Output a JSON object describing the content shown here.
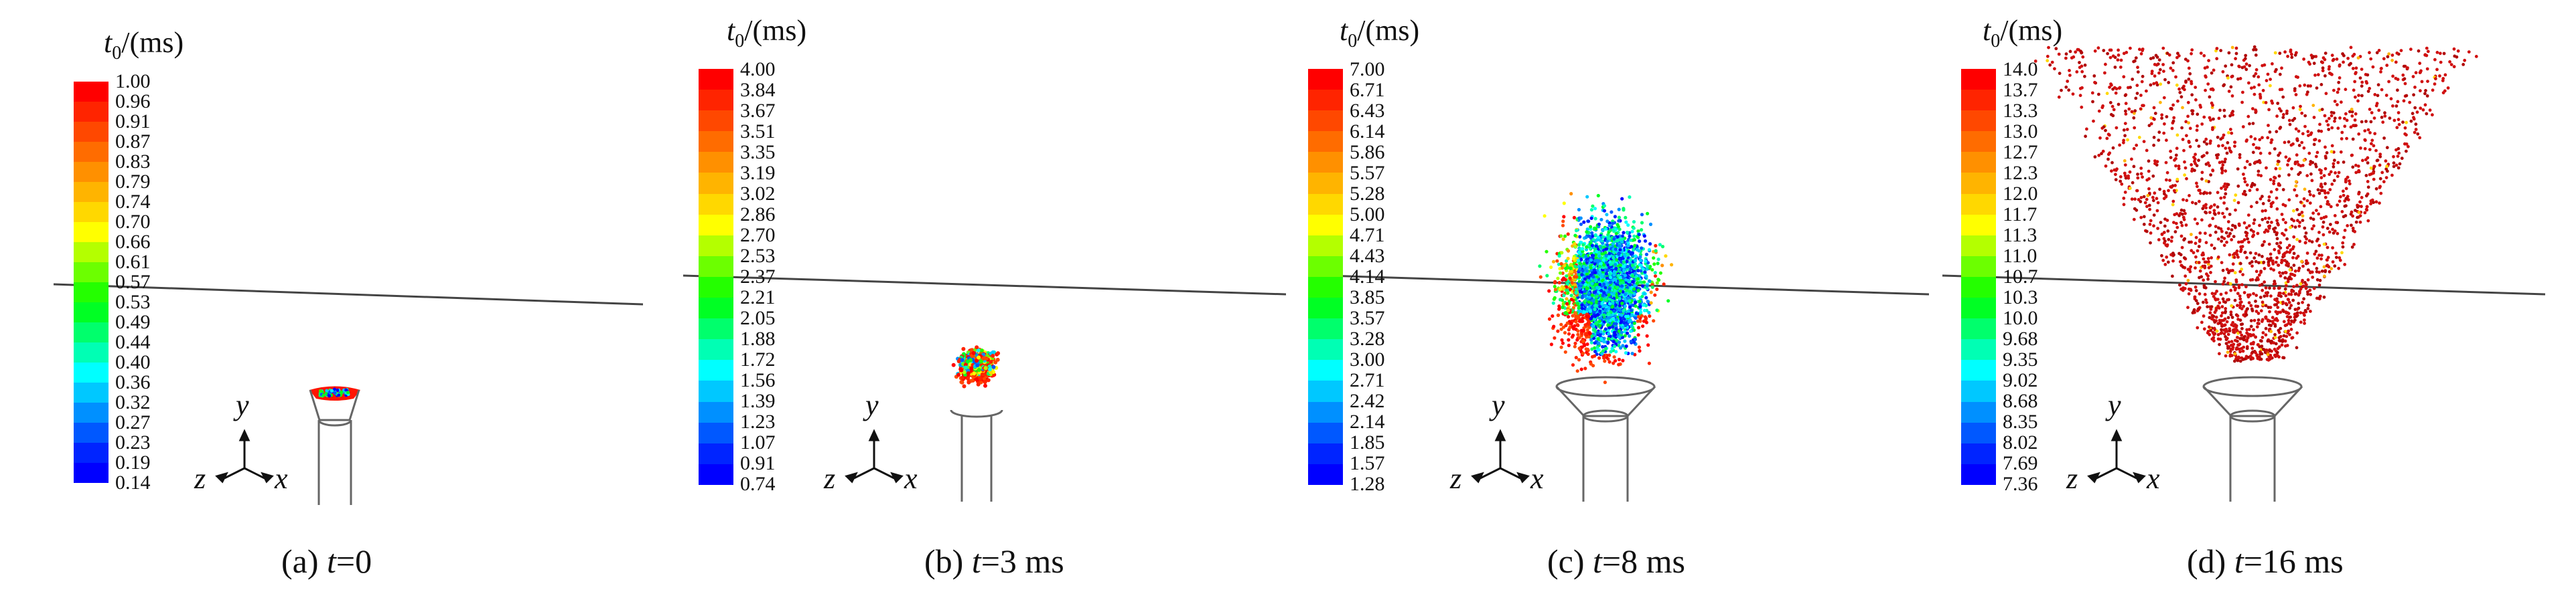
{
  "colorbar_title": {
    "var": "t",
    "sub": "0",
    "unit": "/(ms)"
  },
  "colors": [
    "#ff0000",
    "#ff2400",
    "#ff4800",
    "#ff6c00",
    "#ff9000",
    "#ffb400",
    "#ffd800",
    "#ffff00",
    "#b4ff00",
    "#6cff00",
    "#24ff00",
    "#00ff24",
    "#00ff6c",
    "#00ffb4",
    "#00ffff",
    "#00c8ff",
    "#0090ff",
    "#0058ff",
    "#0024ff",
    "#0000ff"
  ],
  "axes": {
    "x": "x",
    "y": "y",
    "z": "z"
  },
  "panels": [
    {
      "caption_prefix": "(a) ",
      "caption_var": "t",
      "caption_rest": "=0",
      "ticks": [
        "1.00",
        "0.96",
        "0.91",
        "0.87",
        "0.83",
        "0.79",
        "0.74",
        "0.70",
        "0.66",
        "0.61",
        "0.57",
        "0.53",
        "0.49",
        "0.44",
        "0.40",
        "0.36",
        "0.32",
        "0.27",
        "0.23",
        "0.19",
        "0.14"
      ]
    },
    {
      "caption_prefix": "(b) ",
      "caption_var": "t",
      "caption_rest": "=3 ms",
      "ticks": [
        "4.00",
        "3.84",
        "3.67",
        "3.51",
        "3.35",
        "3.19",
        "3.02",
        "2.86",
        "2.70",
        "2.53",
        "2.37",
        "2.21",
        "2.05",
        "1.88",
        "1.72",
        "1.56",
        "1.39",
        "1.23",
        "1.07",
        "0.91",
        "0.74"
      ]
    },
    {
      "caption_prefix": "(c) ",
      "caption_var": "t",
      "caption_rest": "=8 ms",
      "ticks": [
        "7.00",
        "6.71",
        "6.43",
        "6.14",
        "5.86",
        "5.57",
        "5.28",
        "5.00",
        "4.71",
        "4.43",
        "4.14",
        "3.85",
        "3.57",
        "3.28",
        "3.00",
        "2.71",
        "2.42",
        "2.14",
        "1.85",
        "1.57",
        "1.28"
      ]
    },
    {
      "caption_prefix": "(d) ",
      "caption_var": "t",
      "caption_rest": "=16 ms",
      "ticks": [
        "14.0",
        "13.7",
        "13.3",
        "13.0",
        "12.7",
        "12.3",
        "12.0",
        "11.7",
        "11.3",
        "11.0",
        "10.7",
        "10.3",
        "10.0",
        "9.68",
        "9.35",
        "9.02",
        "8.68",
        "8.35",
        "8.02",
        "7.69",
        "7.36"
      ]
    }
  ]
}
